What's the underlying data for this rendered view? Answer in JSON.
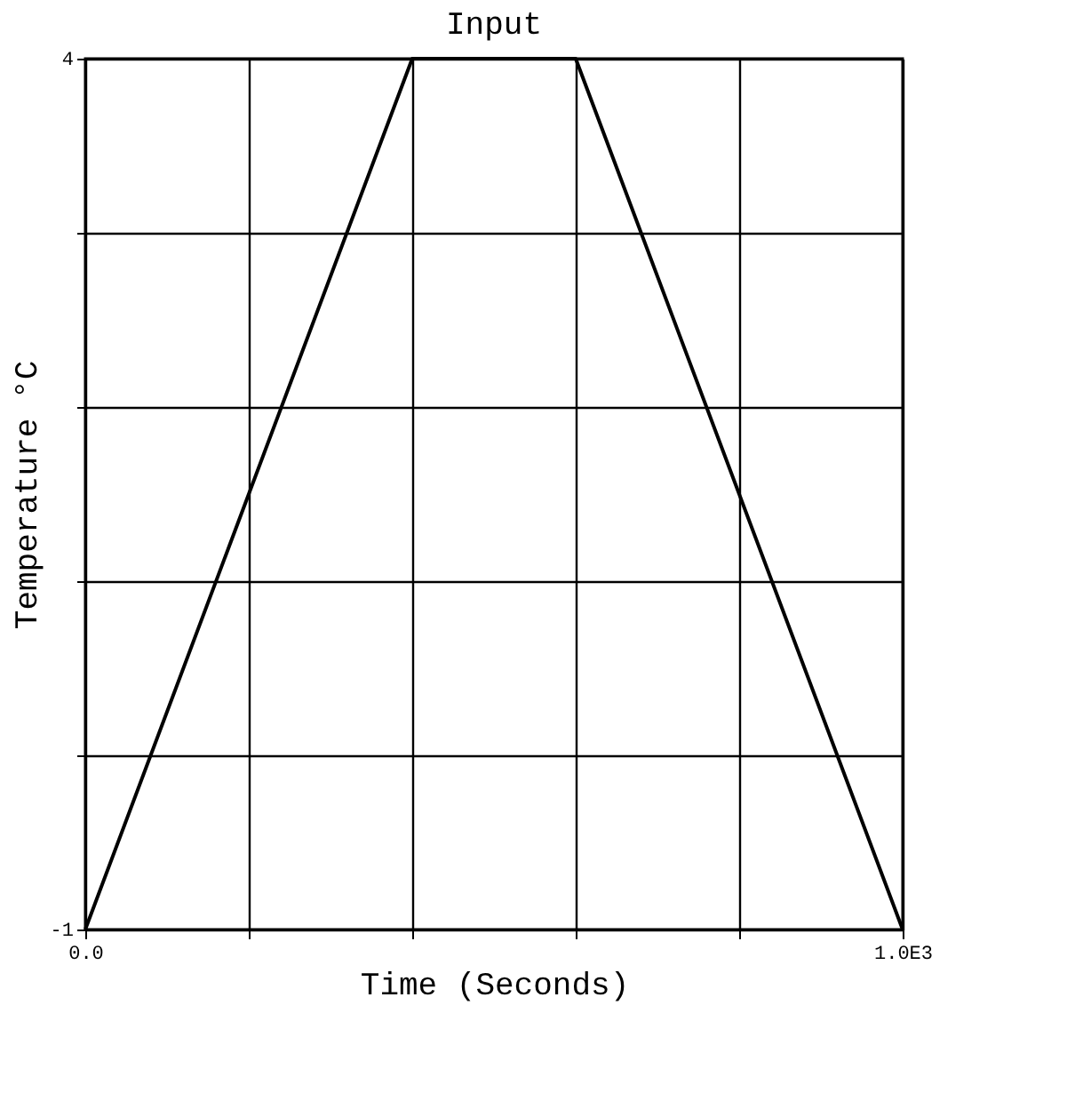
{
  "chart_data": {
    "type": "line",
    "title": "Input",
    "xlabel": "Time (Seconds)",
    "ylabel": "Temperature °C",
    "x": [
      0,
      400,
      600,
      1000
    ],
    "series": [
      {
        "color": "#000000",
        "values": [
          -1,
          4,
          4,
          -1
        ]
      }
    ],
    "xlim": [
      0,
      1000
    ],
    "ylim": [
      -1,
      4
    ],
    "xticks": [
      {
        "value": 0,
        "label": "0.0"
      },
      {
        "value": 200,
        "label": null
      },
      {
        "value": 400,
        "label": null
      },
      {
        "value": 600,
        "label": null
      },
      {
        "value": 800,
        "label": null
      },
      {
        "value": 1000,
        "label": "1.0E3"
      }
    ],
    "yticks": [
      {
        "value": -1,
        "label": "-1"
      },
      {
        "value": 0,
        "label": null
      },
      {
        "value": 1,
        "label": null
      },
      {
        "value": 2,
        "label": null
      },
      {
        "value": 3,
        "label": null
      },
      {
        "value": 4,
        "label": "4"
      }
    ],
    "grid": true,
    "marker": "none",
    "line_style": "solid"
  }
}
